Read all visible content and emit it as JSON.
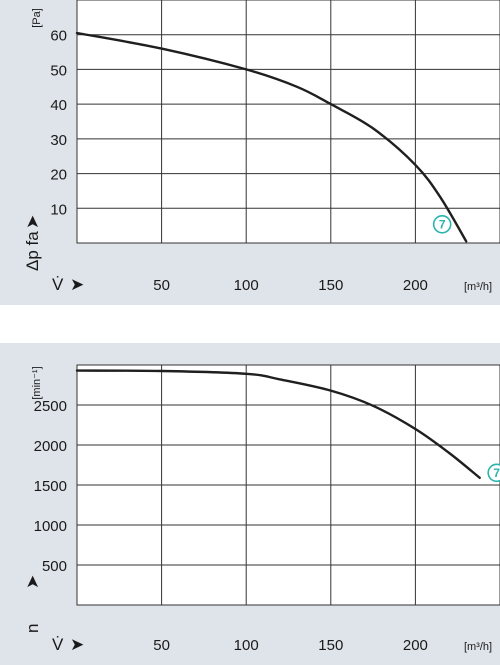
{
  "chart_data": [
    {
      "type": "line",
      "title": "",
      "xlabel": "V̇",
      "x_unit": "[m³/h]",
      "ylabel": "Δp fa",
      "y_unit": "[Pa]",
      "xlim": [
        0,
        250
      ],
      "ylim": [
        0,
        70
      ],
      "x_ticks": [
        "50",
        "100",
        "150",
        "200"
      ],
      "y_ticks": [
        "10",
        "20",
        "30",
        "40",
        "50",
        "60"
      ],
      "grid": true,
      "x_arrow": "➤",
      "y_arrow": "➤",
      "series": [
        {
          "label": "7",
          "color": "#1f1f1f",
          "badge_color": "#2bb5ad",
          "x": [
            0,
            50,
            100,
            130,
            150,
            175,
            200,
            215,
            230
          ],
          "y": [
            60.5,
            56,
            50,
            45,
            40,
            33,
            22.5,
            13,
            0.5
          ]
        }
      ]
    },
    {
      "type": "line",
      "title": "",
      "xlabel": "V̇",
      "x_unit": "[m³/h]",
      "ylabel": "n",
      "y_unit": "[min⁻¹]",
      "xlim": [
        0,
        250
      ],
      "ylim": [
        0,
        3000
      ],
      "x_ticks": [
        "50",
        "100",
        "150",
        "200"
      ],
      "y_ticks": [
        "500",
        "1000",
        "1500",
        "2000",
        "2500"
      ],
      "grid": true,
      "x_arrow": "➤",
      "y_arrow": "➤",
      "series": [
        {
          "label": "7",
          "color": "#1f1f1f",
          "badge_color": "#2bb5ad",
          "x": [
            0,
            50,
            100,
            120,
            150,
            175,
            200,
            220,
            238
          ],
          "y": [
            2930,
            2925,
            2890,
            2820,
            2680,
            2490,
            2200,
            1900,
            1590
          ]
        }
      ]
    }
  ]
}
